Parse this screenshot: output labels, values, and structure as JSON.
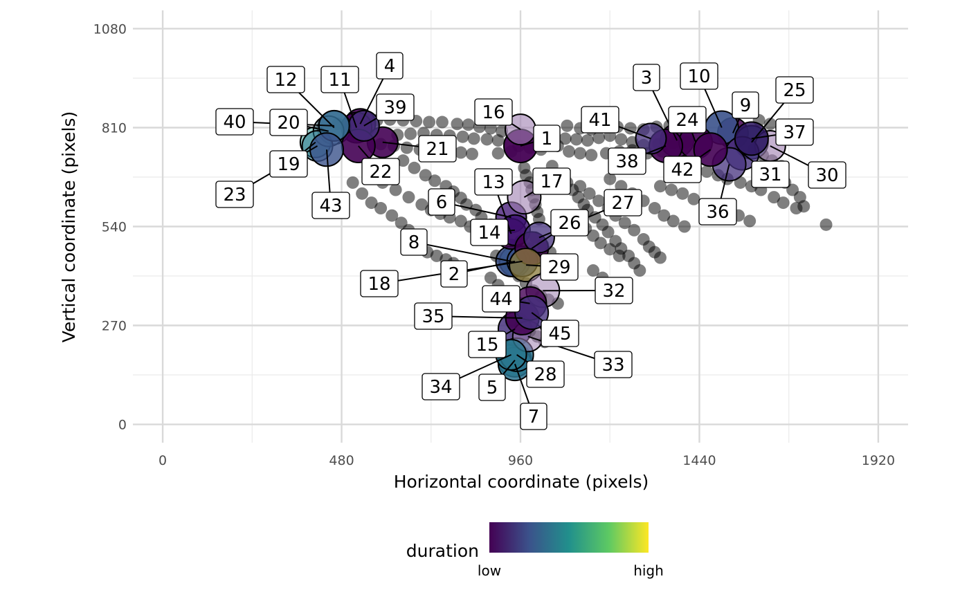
{
  "chart_data": {
    "type": "scatter",
    "xlabel": "Horizontal coordinate (pixels)",
    "ylabel": "Vertical coordinate (pixels)",
    "xlim": [
      -80,
      2000
    ],
    "ylim": [
      -50,
      1130
    ],
    "x_ticks": [
      "0",
      "480",
      "960",
      "1440",
      "1920"
    ],
    "x_tick_values": [
      0,
      480,
      960,
      1440,
      1920
    ],
    "y_ticks": [
      "0",
      "270",
      "540",
      "810",
      "1080"
    ],
    "y_tick_values": [
      0,
      270,
      540,
      810,
      1080
    ],
    "grid": true,
    "legend": {
      "title": "duration",
      "placement": "bottom",
      "low_label": "low",
      "high_label": "high",
      "colors": [
        "#440154",
        "#3b528b",
        "#21908c",
        "#5dc963",
        "#fde725"
      ]
    },
    "gaze_points": [
      [
        470,
        820
      ],
      [
        505,
        830
      ],
      [
        540,
        835
      ],
      [
        575,
        830
      ],
      [
        610,
        832
      ],
      [
        645,
        830
      ],
      [
        680,
        828
      ],
      [
        715,
        825
      ],
      [
        750,
        825
      ],
      [
        790,
        820
      ],
      [
        820,
        818
      ],
      [
        850,
        812
      ],
      [
        880,
        808
      ],
      [
        910,
        800
      ],
      [
        630,
        790
      ],
      [
        665,
        793
      ],
      [
        700,
        795
      ],
      [
        735,
        790
      ],
      [
        770,
        788
      ],
      [
        805,
        785
      ],
      [
        835,
        780
      ],
      [
        870,
        778
      ],
      [
        900,
        775
      ],
      [
        1085,
        815
      ],
      [
        1120,
        808
      ],
      [
        1150,
        805
      ],
      [
        1185,
        815
      ],
      [
        1220,
        812
      ],
      [
        1255,
        808
      ],
      [
        1290,
        805
      ],
      [
        1325,
        812
      ],
      [
        1360,
        815
      ],
      [
        1395,
        812
      ],
      [
        1430,
        810
      ],
      [
        1050,
        790
      ],
      [
        1080,
        780
      ],
      [
        1110,
        778
      ],
      [
        1140,
        775
      ],
      [
        1170,
        782
      ],
      [
        1200,
        788
      ],
      [
        1230,
        778
      ],
      [
        1260,
        770
      ],
      [
        1290,
        762
      ],
      [
        1330,
        765
      ],
      [
        1370,
        768
      ],
      [
        1405,
        770
      ],
      [
        1600,
        830
      ],
      [
        1630,
        820
      ],
      [
        1660,
        810
      ],
      [
        1625,
        700
      ],
      [
        1650,
        680
      ],
      [
        1670,
        660
      ],
      [
        1690,
        640
      ],
      [
        1710,
        620
      ],
      [
        1720,
        595
      ],
      [
        1700,
        590
      ],
      [
        510,
        660
      ],
      [
        535,
        630
      ],
      [
        560,
        605
      ],
      [
        585,
        590
      ],
      [
        615,
        570
      ],
      [
        640,
        550
      ],
      [
        660,
        530
      ],
      [
        675,
        510
      ],
      [
        690,
        490
      ],
      [
        710,
        470
      ],
      [
        735,
        460
      ],
      [
        760,
        450
      ],
      [
        780,
        440
      ],
      [
        800,
        420
      ],
      [
        555,
        680
      ],
      [
        590,
        660
      ],
      [
        625,
        640
      ],
      [
        660,
        620
      ],
      [
        695,
        600
      ],
      [
        720,
        585
      ],
      [
        745,
        575
      ],
      [
        770,
        565
      ],
      [
        800,
        555
      ],
      [
        825,
        540
      ],
      [
        850,
        530
      ],
      [
        875,
        520
      ],
      [
        905,
        505
      ],
      [
        645,
        720
      ],
      [
        675,
        700
      ],
      [
        705,
        680
      ],
      [
        730,
        665
      ],
      [
        760,
        650
      ],
      [
        780,
        635
      ],
      [
        800,
        618
      ],
      [
        815,
        600
      ],
      [
        840,
        585
      ],
      [
        855,
        565
      ],
      [
        880,
        545
      ],
      [
        1045,
        705
      ],
      [
        1065,
        680
      ],
      [
        1085,
        660
      ],
      [
        1100,
        640
      ],
      [
        1115,
        620
      ],
      [
        1130,
        600
      ],
      [
        1140,
        585
      ],
      [
        1160,
        565
      ],
      [
        1180,
        545
      ],
      [
        1195,
        525
      ],
      [
        1215,
        500
      ],
      [
        1230,
        480
      ],
      [
        1250,
        460
      ],
      [
        1265,
        440
      ],
      [
        1280,
        420
      ],
      [
        1120,
        650
      ],
      [
        1145,
        630
      ],
      [
        1170,
        610
      ],
      [
        1195,
        590
      ],
      [
        1215,
        570
      ],
      [
        1240,
        550
      ],
      [
        1265,
        530
      ],
      [
        1290,
        505
      ],
      [
        1305,
        485
      ],
      [
        1320,
        470
      ],
      [
        1335,
        455
      ],
      [
        1200,
        670
      ],
      [
        1230,
        650
      ],
      [
        1260,
        630
      ],
      [
        1290,
        610
      ],
      [
        1320,
        590
      ],
      [
        1345,
        570
      ],
      [
        1370,
        555
      ],
      [
        1400,
        540
      ],
      [
        1335,
        650
      ],
      [
        1365,
        640
      ],
      [
        1395,
        630
      ],
      [
        1425,
        615
      ],
      [
        1455,
        600
      ],
      [
        1490,
        590
      ],
      [
        1520,
        580
      ],
      [
        1545,
        570
      ],
      [
        1575,
        555
      ],
      [
        1430,
        700
      ],
      [
        1460,
        690
      ],
      [
        1490,
        680
      ],
      [
        1515,
        670
      ],
      [
        1550,
        660
      ],
      [
        1580,
        650
      ],
      [
        1605,
        640
      ],
      [
        1640,
        620
      ],
      [
        1665,
        605
      ],
      [
        1110,
        555
      ],
      [
        1135,
        535
      ],
      [
        1155,
        515
      ],
      [
        1175,
        495
      ],
      [
        1200,
        478
      ],
      [
        1225,
        460
      ],
      [
        1155,
        420
      ],
      [
        1180,
        400
      ],
      [
        1200,
        385
      ],
      [
        1220,
        365
      ],
      [
        1240,
        350
      ],
      [
        895,
        460
      ],
      [
        915,
        440
      ],
      [
        935,
        425
      ],
      [
        955,
        405
      ],
      [
        975,
        385
      ],
      [
        995,
        365
      ],
      [
        1015,
        350
      ],
      [
        1035,
        340
      ],
      [
        1060,
        330
      ],
      [
        880,
        400
      ],
      [
        900,
        380
      ],
      [
        920,
        360
      ],
      [
        940,
        345
      ],
      [
        960,
        330
      ],
      [
        975,
        315
      ],
      [
        935,
        280
      ],
      [
        960,
        270
      ],
      [
        985,
        255
      ],
      [
        1005,
        240
      ],
      [
        1025,
        225
      ],
      [
        970,
        700
      ],
      [
        975,
        680
      ],
      [
        985,
        660
      ],
      [
        990,
        640
      ],
      [
        995,
        620
      ],
      [
        1000,
        600
      ],
      [
        1005,
        580
      ],
      [
        1010,
        560
      ],
      [
        900,
        530
      ],
      [
        915,
        510
      ],
      [
        935,
        490
      ],
      [
        955,
        470
      ],
      [
        1000,
        510
      ],
      [
        1020,
        490
      ],
      [
        1040,
        470
      ],
      [
        1060,
        450
      ],
      [
        960,
        500
      ],
      [
        985,
        480
      ],
      [
        1000,
        460
      ],
      [
        1190,
        740
      ],
      [
        1225,
        745
      ],
      [
        1260,
        748
      ],
      [
        1300,
        740
      ],
      [
        1340,
        745
      ],
      [
        585,
        765
      ],
      [
        620,
        760
      ],
      [
        655,
        755
      ],
      [
        690,
        750
      ],
      [
        725,
        748
      ],
      [
        760,
        745
      ],
      [
        800,
        742
      ],
      [
        830,
        738
      ],
      [
        900,
        740
      ],
      [
        935,
        745
      ],
      [
        955,
        760
      ],
      [
        985,
        755
      ],
      [
        1015,
        750
      ],
      [
        1060,
        760
      ],
      [
        1090,
        745
      ],
      [
        1120,
        740
      ],
      [
        1150,
        735
      ],
      [
        1585,
        750
      ],
      [
        1610,
        735
      ],
      [
        1635,
        720
      ],
      [
        1660,
        705
      ],
      [
        1780,
        545
      ]
    ],
    "fixations": [
      {
        "id": "1",
        "x": 960,
        "y": 760,
        "r": 24,
        "color": "#440154",
        "alpha": 0.95
      },
      {
        "id": "2",
        "x": 945,
        "y": 445,
        "r": 22,
        "color": "#31688e",
        "alpha": 0.9
      },
      {
        "id": "3",
        "x": 1380,
        "y": 775,
        "r": 24,
        "color": "#440154",
        "alpha": 0.9
      },
      {
        "id": "4",
        "x": 530,
        "y": 820,
        "r": 22,
        "color": "#440154",
        "alpha": 0.9
      },
      {
        "id": "5",
        "x": 945,
        "y": 175,
        "r": 24,
        "color": "#21908c",
        "alpha": 0.9
      },
      {
        "id": "6",
        "x": 935,
        "y": 565,
        "r": 22,
        "color": "#3b0f70",
        "alpha": 0.75
      },
      {
        "id": "7",
        "x": 945,
        "y": 165,
        "r": 24,
        "color": "#2c728e",
        "alpha": 0.85
      },
      {
        "id": "8",
        "x": 935,
        "y": 445,
        "r": 22,
        "color": "#3b528b",
        "alpha": 0.85
      },
      {
        "id": "9",
        "x": 1530,
        "y": 795,
        "r": 22,
        "color": "#440154",
        "alpha": 0.85
      },
      {
        "id": "10",
        "x": 1500,
        "y": 810,
        "r": 24,
        "color": "#3b528b",
        "alpha": 0.9
      },
      {
        "id": "11",
        "x": 520,
        "y": 810,
        "r": 22,
        "color": "#440154",
        "alpha": 0.9
      },
      {
        "id": "12",
        "x": 460,
        "y": 810,
        "r": 24,
        "color": "#6a9fb5",
        "alpha": 0.6
      },
      {
        "id": "13",
        "x": 935,
        "y": 520,
        "r": 22,
        "color": "#440154",
        "alpha": 0.75
      },
      {
        "id": "14",
        "x": 945,
        "y": 530,
        "r": 22,
        "color": "#3b0f70",
        "alpha": 0.8
      },
      {
        "id": "15",
        "x": 945,
        "y": 260,
        "r": 24,
        "color": "#46327e",
        "alpha": 0.85
      },
      {
        "id": "16",
        "x": 960,
        "y": 805,
        "r": 22,
        "color": "#9e7fb1",
        "alpha": 0.6
      },
      {
        "id": "17",
        "x": 970,
        "y": 620,
        "r": 24,
        "color": "#9e7fb1",
        "alpha": 0.6
      },
      {
        "id": "18",
        "x": 965,
        "y": 445,
        "r": 22,
        "color": "#3b528b",
        "alpha": 0.85
      },
      {
        "id": "19",
        "x": 410,
        "y": 770,
        "r": 22,
        "color": "#44a49a",
        "alpha": 0.55
      },
      {
        "id": "20",
        "x": 445,
        "y": 800,
        "r": 22,
        "color": "#7fa8b8",
        "alpha": 0.5
      },
      {
        "id": "21",
        "x": 590,
        "y": 770,
        "r": 22,
        "color": "#440154",
        "alpha": 0.9
      },
      {
        "id": "22",
        "x": 525,
        "y": 760,
        "r": 24,
        "color": "#440154",
        "alpha": 0.9
      },
      {
        "id": "23",
        "x": 415,
        "y": 760,
        "r": 22,
        "color": "#2a788e",
        "alpha": 0.55
      },
      {
        "id": "24",
        "x": 1430,
        "y": 770,
        "r": 24,
        "color": "#440154",
        "alpha": 0.9
      },
      {
        "id": "25",
        "x": 1580,
        "y": 770,
        "r": 24,
        "color": "#3b528b",
        "alpha": 0.8
      },
      {
        "id": "26",
        "x": 990,
        "y": 480,
        "r": 24,
        "color": "#440154",
        "alpha": 0.85
      },
      {
        "id": "27",
        "x": 1010,
        "y": 510,
        "r": 22,
        "color": "#46327e",
        "alpha": 0.75
      },
      {
        "id": "28",
        "x": 950,
        "y": 190,
        "r": 24,
        "color": "#2c728e",
        "alpha": 0.85
      },
      {
        "id": "29",
        "x": 975,
        "y": 435,
        "r": 24,
        "color": "#8a7a3a",
        "alpha": 0.75
      },
      {
        "id": "30",
        "x": 1630,
        "y": 760,
        "r": 22,
        "color": "#9e7fb1",
        "alpha": 0.6
      },
      {
        "id": "31",
        "x": 1555,
        "y": 740,
        "r": 24,
        "color": "#46327e",
        "alpha": 0.8
      },
      {
        "id": "32",
        "x": 1020,
        "y": 365,
        "r": 24,
        "color": "#9e7fb1",
        "alpha": 0.55
      },
      {
        "id": "33",
        "x": 980,
        "y": 240,
        "r": 22,
        "color": "#9e7fb1",
        "alpha": 0.55
      },
      {
        "id": "34",
        "x": 935,
        "y": 190,
        "r": 22,
        "color": "#2a788e",
        "alpha": 0.8
      },
      {
        "id": "35",
        "x": 965,
        "y": 290,
        "r": 24,
        "color": "#440154",
        "alpha": 0.85
      },
      {
        "id": "36",
        "x": 1520,
        "y": 710,
        "r": 24,
        "color": "#46327e",
        "alpha": 0.75
      },
      {
        "id": "37",
        "x": 1580,
        "y": 780,
        "r": 24,
        "color": "#2e1760",
        "alpha": 0.85
      },
      {
        "id": "38",
        "x": 1350,
        "y": 760,
        "r": 24,
        "color": "#440154",
        "alpha": 0.9
      },
      {
        "id": "39",
        "x": 540,
        "y": 815,
        "r": 22,
        "color": "#46327e",
        "alpha": 0.8
      },
      {
        "id": "40",
        "x": 460,
        "y": 815,
        "r": 22,
        "color": "#31688e",
        "alpha": 0.85
      },
      {
        "id": "41",
        "x": 1310,
        "y": 780,
        "r": 22,
        "color": "#46327e",
        "alpha": 0.75
      },
      {
        "id": "42",
        "x": 1470,
        "y": 750,
        "r": 24,
        "color": "#440154",
        "alpha": 0.9
      },
      {
        "id": "43",
        "x": 440,
        "y": 750,
        "r": 24,
        "color": "#3b528b",
        "alpha": 0.8
      },
      {
        "id": "44",
        "x": 985,
        "y": 330,
        "r": 24,
        "color": "#440154",
        "alpha": 0.8
      },
      {
        "id": "45",
        "x": 990,
        "y": 305,
        "r": 24,
        "color": "#46327e",
        "alpha": 0.8
      }
    ]
  }
}
